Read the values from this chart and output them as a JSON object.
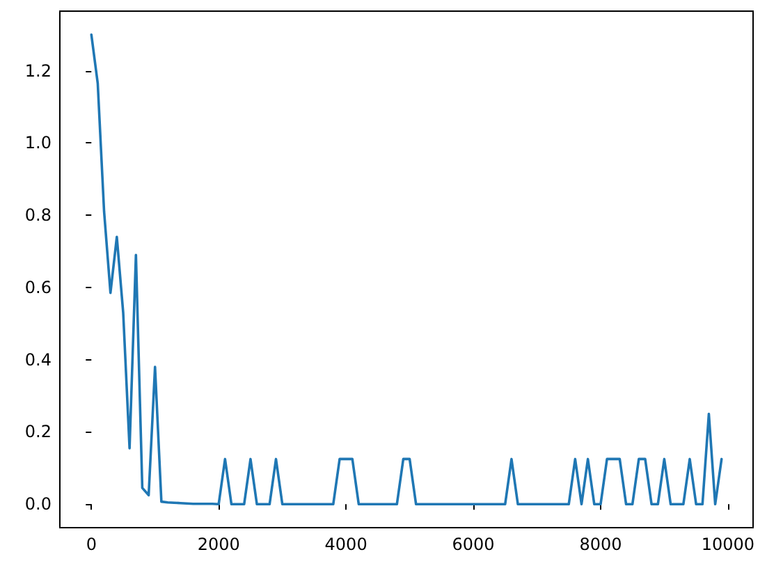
{
  "chart_data": {
    "type": "line",
    "x": [
      0,
      100,
      200,
      300,
      400,
      500,
      600,
      700,
      800,
      900,
      1000,
      1100,
      1200,
      1300,
      1400,
      1500,
      1600,
      1700,
      1800,
      1900,
      2000,
      2100,
      2200,
      2300,
      2400,
      2500,
      2600,
      2700,
      2800,
      2900,
      3000,
      3100,
      3200,
      3300,
      3400,
      3500,
      3600,
      3700,
      3800,
      3900,
      4000,
      4100,
      4200,
      4300,
      4400,
      4500,
      4600,
      4700,
      4800,
      4900,
      5000,
      5100,
      5200,
      5300,
      5400,
      5500,
      5600,
      5700,
      5800,
      5900,
      6000,
      6100,
      6200,
      6300,
      6400,
      6500,
      6600,
      6700,
      6800,
      6900,
      7000,
      7100,
      7200,
      7300,
      7400,
      7500,
      7600,
      7700,
      7800,
      7900,
      8000,
      8100,
      8200,
      8300,
      8400,
      8500,
      8600,
      8700,
      8800,
      8900,
      9000,
      9100,
      9200,
      9300,
      9400,
      9500,
      9600,
      9700,
      9800,
      9900
    ],
    "values": [
      1.3,
      1.165,
      0.81,
      0.585,
      0.74,
      0.53,
      0.155,
      0.69,
      0.045,
      0.025,
      0.38,
      0.007,
      0.005,
      0.004,
      0.003,
      0.002,
      0.001,
      0.001,
      0.001,
      0.001,
      0,
      0.125,
      0,
      0,
      0,
      0.125,
      0,
      0,
      0,
      0.125,
      0,
      0,
      0,
      0,
      0,
      0,
      0,
      0,
      0,
      0.125,
      0.125,
      0.125,
      0,
      0,
      0,
      0,
      0,
      0,
      0,
      0.125,
      0.125,
      0,
      0,
      0,
      0,
      0,
      0,
      0,
      0,
      0,
      0,
      0,
      0,
      0,
      0,
      0,
      0.125,
      0,
      0,
      0,
      0,
      0,
      0,
      0,
      0,
      0,
      0.125,
      0,
      0.125,
      0,
      0,
      0.125,
      0.125,
      0.125,
      0,
      0,
      0.125,
      0.125,
      0,
      0,
      0.125,
      0,
      0,
      0,
      0.125,
      0,
      0,
      0.25,
      0,
      0.125
    ],
    "color": "#1f77b4",
    "xlim": [
      -495,
      10395
    ],
    "xticks": [
      0,
      2000,
      4000,
      6000,
      8000,
      10000
    ],
    "ylim": [
      -0.065,
      1.365
    ],
    "yticks": [
      {
        "value": 0,
        "label": "0.0"
      },
      0.2,
      0.4,
      0.6,
      0.8,
      {
        "value": 1,
        "label": "1.0"
      },
      1.2
    ],
    "marker": "none",
    "line_style": "solid"
  }
}
